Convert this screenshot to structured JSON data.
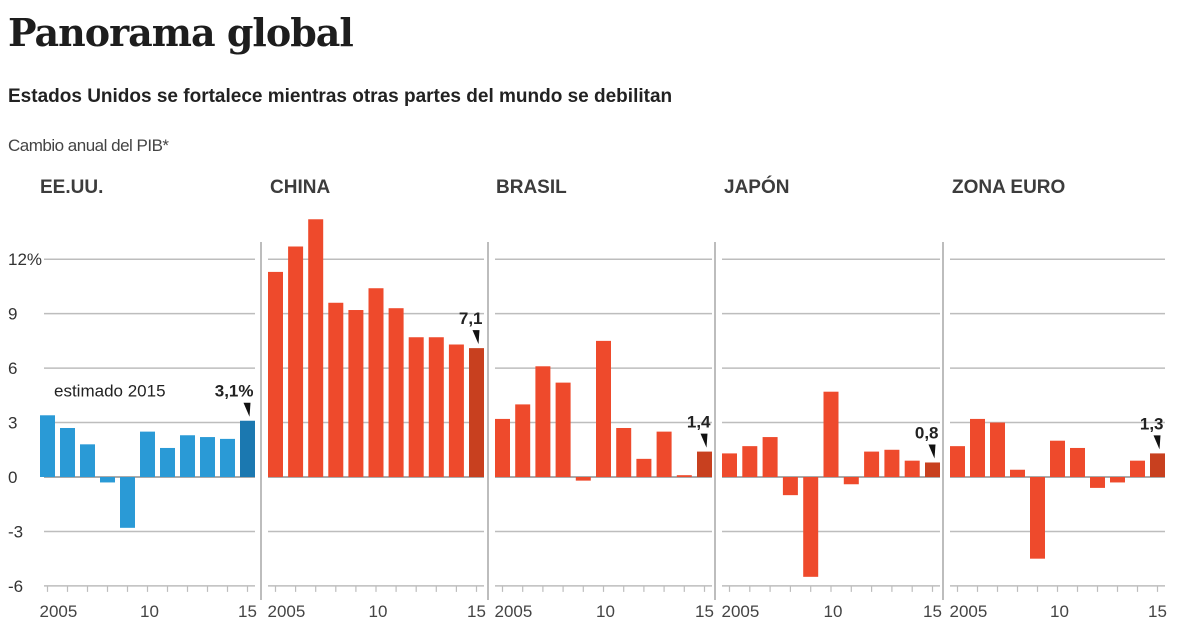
{
  "header": {
    "title": "Panorama global",
    "subtitle": "Estados Unidos se fortalece mientras otras partes del mundo se debilitan",
    "measure": "Cambio anual del PIB*"
  },
  "colors": {
    "us_bar": "#2a9ad6",
    "us_bar_highlight": "#1b78b0",
    "other_bar": "#ee4a2c",
    "other_bar_highlight": "#c8401f",
    "grid": "#bdbdbd",
    "divider": "#bdbdbd",
    "arrow": "#111111"
  },
  "chart_data": {
    "type": "bar",
    "title": "Panorama global",
    "subtitle": "Estados Unidos se fortalece mientras otras partes del mundo se debilitan",
    "ylabel": "Cambio anual del PIB*",
    "xlabel": "",
    "ylim": [
      -6,
      12
    ],
    "yticks": [
      12,
      9,
      6,
      3,
      0,
      -3,
      -6
    ],
    "ytick_labels": [
      "12%",
      "9",
      "6",
      "3",
      "0",
      "-3",
      "-6"
    ],
    "grid": true,
    "years": [
      2005,
      2006,
      2007,
      2008,
      2009,
      2010,
      2011,
      2012,
      2013,
      2014,
      2015
    ],
    "xtick_labels": [
      {
        "index": 0,
        "label": "2005"
      },
      {
        "index": 5,
        "label": "10"
      },
      {
        "index": 10,
        "label": "15"
      }
    ],
    "panels": [
      {
        "name": "EE.UU.",
        "values": [
          3.4,
          2.7,
          1.8,
          -0.3,
          -2.8,
          2.5,
          1.6,
          2.3,
          2.2,
          2.1,
          3.1
        ],
        "highlight_index": 10,
        "annotation": "3,1%",
        "note": "estimado 2015",
        "color_key": "us"
      },
      {
        "name": "CHINA",
        "values": [
          11.3,
          12.7,
          14.2,
          9.6,
          9.2,
          10.4,
          9.3,
          7.7,
          7.7,
          7.3,
          7.1
        ],
        "highlight_index": 10,
        "annotation": "7,1",
        "color_key": "other"
      },
      {
        "name": "BRASIL",
        "values": [
          3.2,
          4.0,
          6.1,
          5.2,
          -0.2,
          7.5,
          2.7,
          1.0,
          2.5,
          0.1,
          1.4
        ],
        "highlight_index": 10,
        "annotation": "1,4",
        "color_key": "other"
      },
      {
        "name": "JAPÓN",
        "values": [
          1.3,
          1.7,
          2.2,
          -1.0,
          -5.5,
          4.7,
          -0.4,
          1.4,
          1.5,
          0.9,
          0.8
        ],
        "highlight_index": 10,
        "annotation": "0,8",
        "color_key": "other"
      },
      {
        "name": "ZONA EURO",
        "values": [
          1.7,
          3.2,
          3.0,
          0.4,
          -4.5,
          2.0,
          1.6,
          -0.6,
          -0.3,
          0.9,
          1.3
        ],
        "highlight_index": 10,
        "annotation": "1,3",
        "color_key": "other"
      }
    ]
  }
}
